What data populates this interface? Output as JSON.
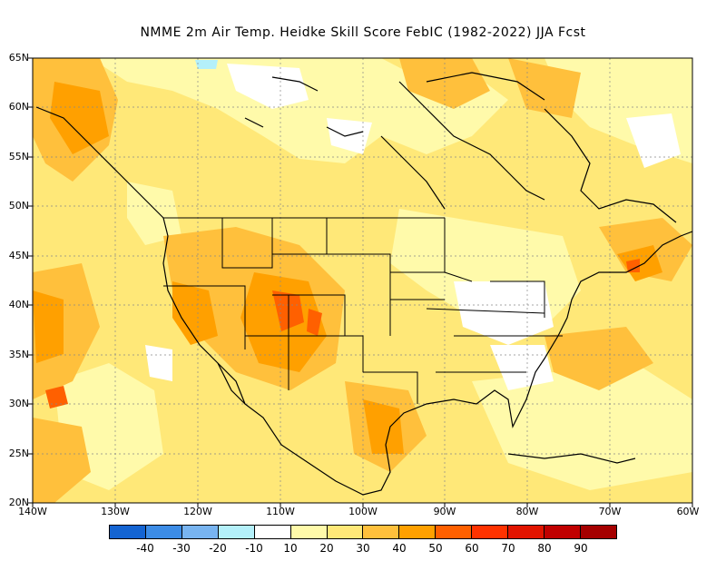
{
  "title": "NMME  2m Air Temp. Heidke Skill Score FebIC (1982-2022) JJA Fcst",
  "map": {
    "lat_ticks": [
      "65N",
      "60N",
      "55N",
      "50N",
      "45N",
      "40N",
      "35N",
      "30N",
      "25N",
      "20N"
    ],
    "lon_ticks": [
      "140W",
      "130W",
      "120W",
      "110W",
      "100W",
      "90W",
      "80W",
      "70W",
      "60W"
    ],
    "lat_range": [
      20,
      65
    ],
    "lon_range": [
      -140,
      -60
    ]
  },
  "legend": {
    "colors": [
      "#1464d2",
      "#3c8ce6",
      "#78b4f0",
      "#b4f0fa",
      "#ffffff",
      "#fffaaa",
      "#ffe878",
      "#ffc03c",
      "#ffa000",
      "#ff6000",
      "#ff3200",
      "#e11400",
      "#c00000",
      "#a50000"
    ],
    "labels": [
      "-40",
      "-30",
      "-20",
      "-10",
      "10",
      "20",
      "30",
      "40",
      "50",
      "60",
      "70",
      "80",
      "90"
    ]
  },
  "colors": {
    "base": "#ffe878",
    "light": "#fffaaa",
    "mid": "#ffc03c",
    "strong": "#ffa000",
    "hot": "#ff6000",
    "neutral": "#ffffff",
    "cool": "#b4f0fa"
  }
}
